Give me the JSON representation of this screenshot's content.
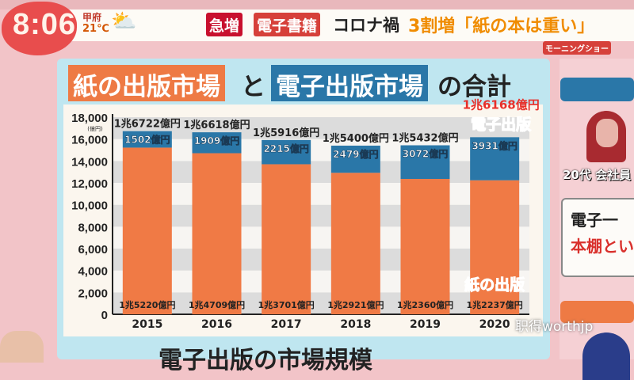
{
  "banner": {
    "clock": "8:06",
    "city": "甲府",
    "temperature": "21℃",
    "weather_icon": "sun-cloud-icon",
    "tag1": "急増",
    "tag2": "電子書籍",
    "headline1": "コロナ禍",
    "headline2": "3割増「紙の本は重い」",
    "program_logo": "モーニングショー"
  },
  "title": {
    "part1": "紙の出版市場",
    "part2": "と",
    "part3": "電子出版市場",
    "part4": "の合計"
  },
  "chart_data": {
    "type": "bar",
    "stacked": true,
    "categories": [
      "2015",
      "2016",
      "2017",
      "2018",
      "2019",
      "2020"
    ],
    "series": [
      {
        "name": "紙の出版",
        "values": [
          15220,
          14709,
          13701,
          12921,
          12360,
          12237
        ],
        "labels": [
          "1兆5220億円",
          "1兆4709億円",
          "1兆3701億円",
          "1兆2921億円",
          "1兆2360億円",
          "1兆2237億円"
        ],
        "color": "#f07a45"
      },
      {
        "name": "電子出版",
        "values": [
          1502,
          1909,
          2215,
          2479,
          3072,
          3931
        ],
        "labels": [
          "1502億円",
          "1909億円",
          "2215億円",
          "2479億円",
          "3072億円",
          "3931億円"
        ],
        "color": "#2a77a8"
      }
    ],
    "totals": [
      "1兆6722億円",
      "1兆6618億円",
      "1兆5916億円",
      "1兆5400億円",
      "1兆5432億円",
      "1兆6168億円"
    ],
    "highlight_total_color": "#e8302a",
    "yticks": [
      "0",
      "2,000",
      "4,000",
      "6,000",
      "8,000",
      "10,000",
      "12,000",
      "14,000",
      "16,000",
      "18,000"
    ],
    "ylabel": "(億円)",
    "ylim": [
      0,
      18000
    ],
    "grid": "alternating bands"
  },
  "right_panel": {
    "person_label": "20代 会社員",
    "quote_line1": "電子一",
    "quote_line2": "本棚とい"
  },
  "bottom_title": "電子出版の市場規模",
  "watermark": "职得worthjp"
}
